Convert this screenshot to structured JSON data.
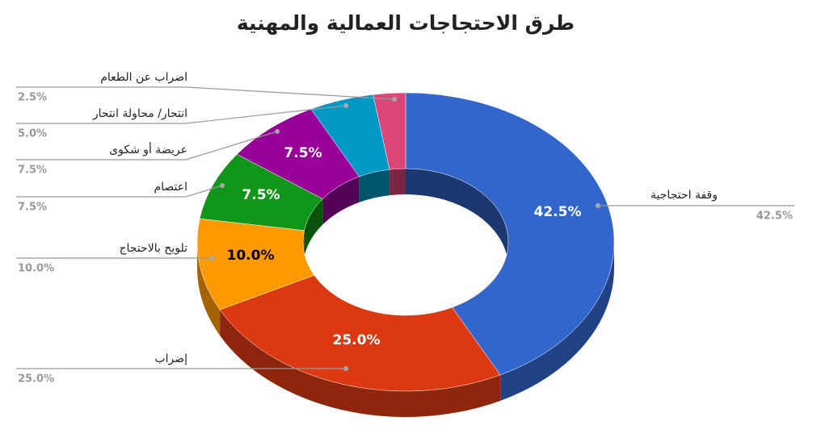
{
  "chart_data": {
    "type": "pie",
    "title": "طرق الاحتجاجات العمالية والمهنية",
    "categories": [
      "وقفة احتجاجية",
      "إضراب",
      "تلويح بالاحتجاج",
      "اعتصام",
      "عريضة أو شكوى",
      "انتحار/ محاولة انتحار",
      "اضراب عن الطعام"
    ],
    "values": [
      42.5,
      25.0,
      10.0,
      7.5,
      7.5,
      5.0,
      2.5
    ],
    "value_labels": [
      "42.5%",
      "25.0%",
      "10.0%",
      "7.5%",
      "7.5%",
      "5.0%",
      "2.5%"
    ],
    "colors": [
      "#3366cc",
      "#dc3912",
      "#ff9900",
      "#109618",
      "#990099",
      "#0099c6",
      "#dd4477"
    ],
    "donut": true,
    "three_d": true
  }
}
